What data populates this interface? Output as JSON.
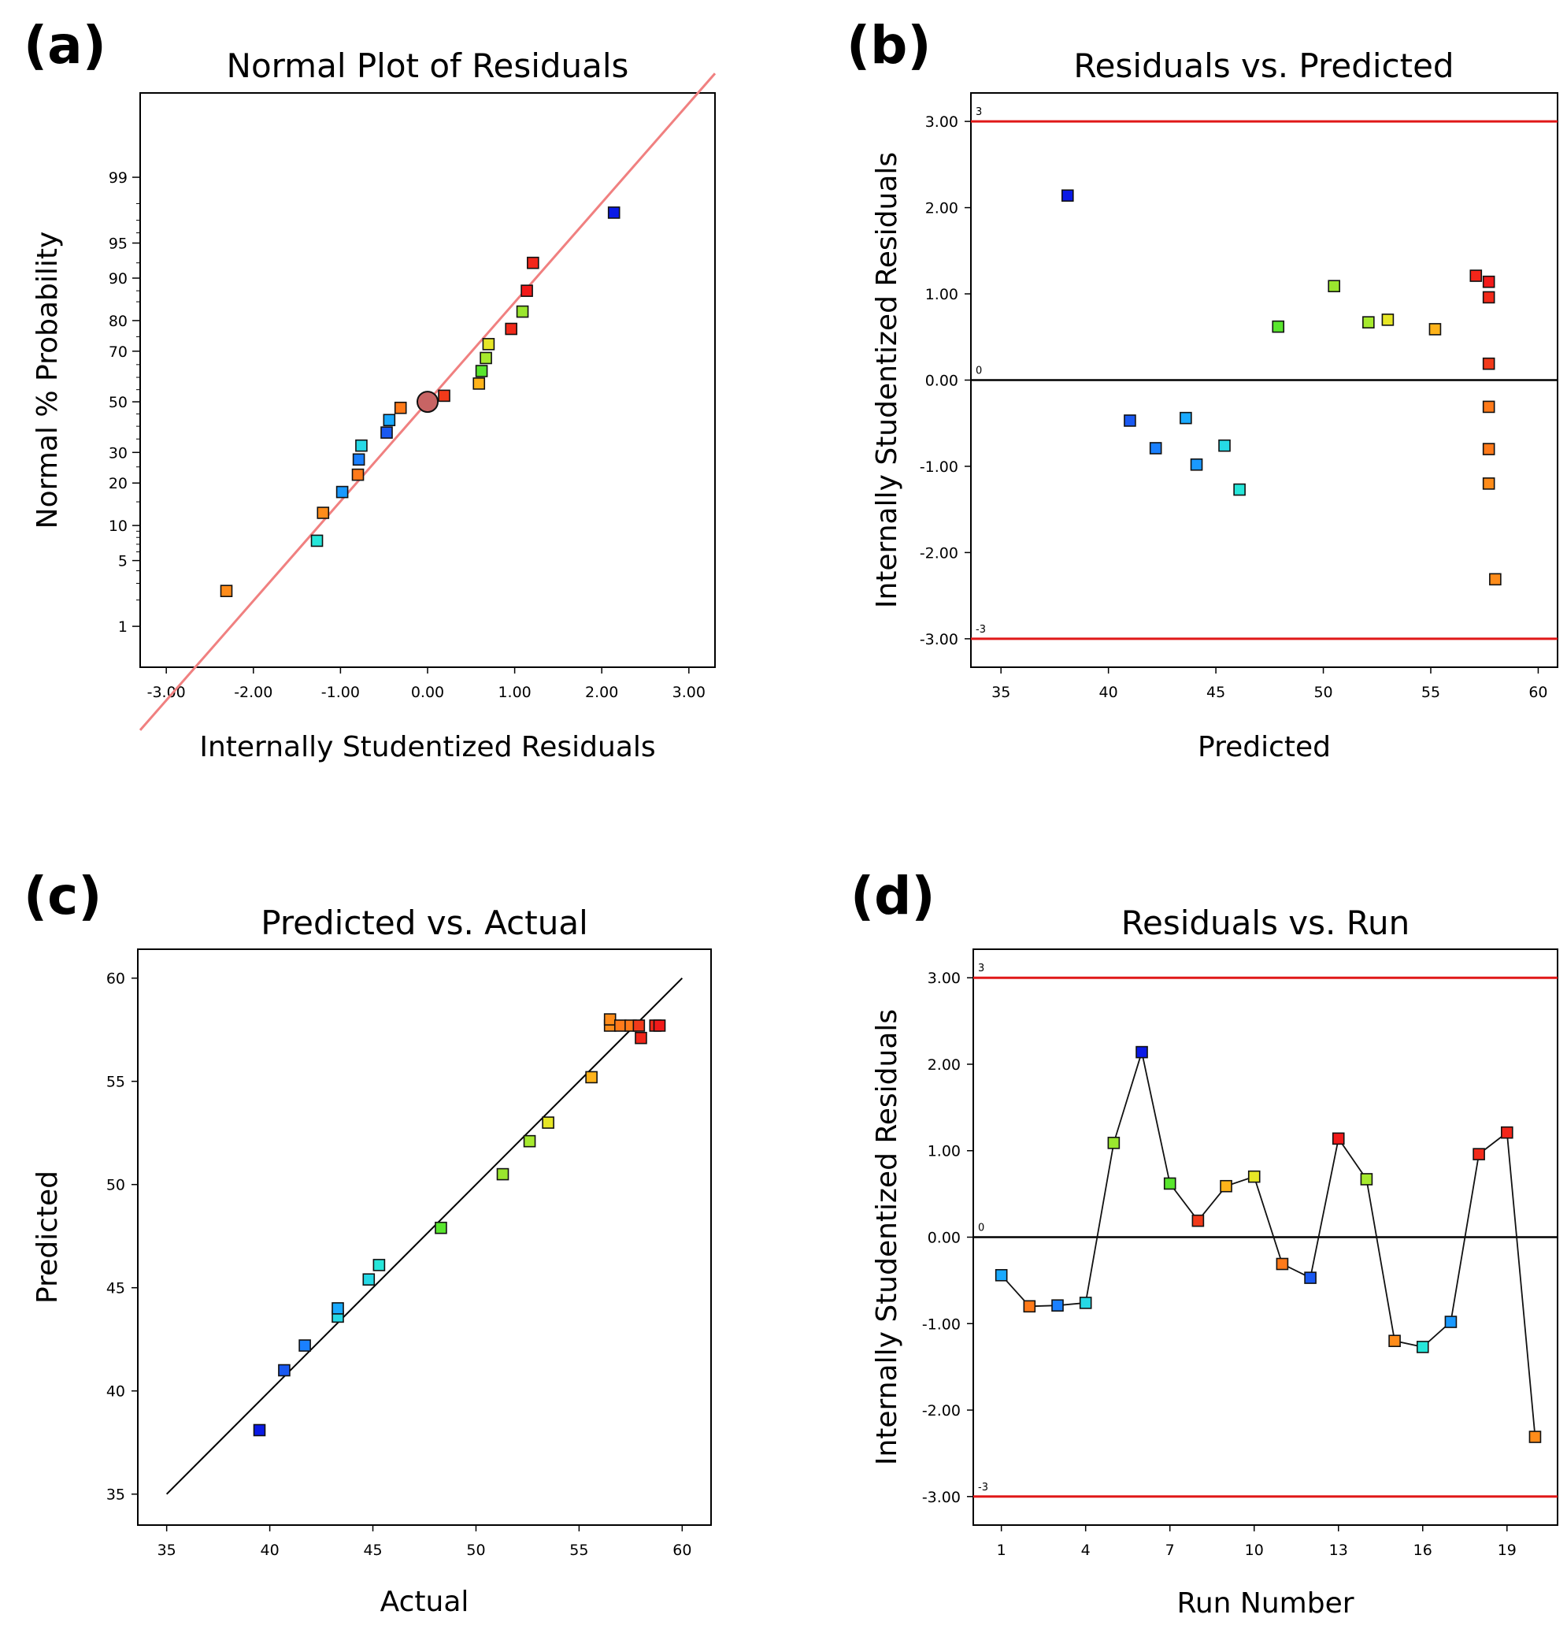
{
  "figure": {
    "panels": [
      {
        "tag": "(a)",
        "title": "Normal Plot of Residuals",
        "xlabel": "Internally Studentized Residuals",
        "ylabel": "Normal % Probability"
      },
      {
        "tag": "(b)",
        "title": "Residuals vs. Predicted",
        "xlabel": "Predicted",
        "ylabel": "Internally Studentized Residuals"
      },
      {
        "tag": "(c)",
        "title": "Predicted vs. Actual",
        "xlabel": "Actual",
        "ylabel": "Predicted"
      },
      {
        "tag": "(d)",
        "title": "Residuals vs. Run",
        "xlabel": "Run Number",
        "ylabel": "Internally Studentized Residuals"
      }
    ]
  },
  "chart_data": [
    {
      "type": "scatter",
      "title": "Normal Plot of Residuals",
      "xlabel": "Internally Studentized Residuals",
      "ylabel": "Normal % Probability",
      "xlim": [
        -3.3,
        3.3
      ],
      "x_ticks": [
        "-3.00",
        "-2.00",
        "-1.00",
        "0.00",
        "1.00",
        "2.00",
        "3.00"
      ],
      "y_ticks": [
        "1",
        "5",
        "10",
        "20",
        "30",
        "50",
        "70",
        "80",
        "90",
        "95",
        "99"
      ],
      "reference_line": "normal fit",
      "line_color": "#f08080",
      "points": [
        {
          "x": -2.31,
          "p": 2.5,
          "color": "#ff8c1a"
        },
        {
          "x": -1.27,
          "p": 7.5,
          "color": "#26e6d9"
        },
        {
          "x": -1.2,
          "p": 12.5,
          "color": "#ff8c1a"
        },
        {
          "x": -0.98,
          "p": 17.5,
          "color": "#1a99ff"
        },
        {
          "x": -0.8,
          "p": 22.5,
          "color": "#ff7a1a"
        },
        {
          "x": -0.79,
          "p": 27.5,
          "color": "#1a80ff"
        },
        {
          "x": -0.76,
          "p": 32.5,
          "color": "#26d9e6"
        },
        {
          "x": -0.47,
          "p": 37.5,
          "color": "#1a59f2"
        },
        {
          "x": -0.44,
          "p": 42.5,
          "color": "#1aaaff"
        },
        {
          "x": -0.31,
          "p": 47.5,
          "color": "#ff7a1a"
        },
        {
          "x": 0.19,
          "p": 52.5,
          "color": "#f23a1a"
        },
        {
          "x": 0.59,
          "p": 57.5,
          "color": "#ffb31a"
        },
        {
          "x": 0.62,
          "p": 62.5,
          "color": "#59e62e"
        },
        {
          "x": 0.67,
          "p": 67.5,
          "color": "#a6ea2e"
        },
        {
          "x": 0.7,
          "p": 72.5,
          "color": "#e6e626"
        },
        {
          "x": 0.96,
          "p": 77.5,
          "color": "#f22a1a"
        },
        {
          "x": 1.09,
          "p": 82.5,
          "color": "#9ae62e"
        },
        {
          "x": 1.14,
          "p": 87.5,
          "color": "#f21a1a"
        },
        {
          "x": 1.21,
          "p": 92.5,
          "color": "#f2261a"
        },
        {
          "x": 2.14,
          "p": 97.5,
          "color": "#0a1ae6"
        }
      ],
      "highlight_point": {
        "x": 0.0,
        "p": 50,
        "color": "#c86464"
      }
    },
    {
      "type": "scatter",
      "title": "Residuals vs. Predicted",
      "xlabel": "Predicted",
      "ylabel": "Internally Studentized Residuals",
      "xlim": [
        33.6,
        60.9
      ],
      "ylim": [
        -3.33,
        3.33
      ],
      "x_ticks": [
        "35",
        "40",
        "45",
        "50",
        "55",
        "60"
      ],
      "y_ticks": [
        "-3.00",
        "-2.00",
        "-1.00",
        "0.00",
        "1.00",
        "2.00",
        "3.00"
      ],
      "limit_lines": [
        {
          "y": 3,
          "label": "3",
          "color": "#e01818"
        },
        {
          "y": -3,
          "label": "-3",
          "color": "#e01818"
        }
      ],
      "zero_line": {
        "y": 0,
        "label": "0"
      },
      "points": [
        {
          "x": 38.1,
          "y": 2.14,
          "color": "#0a1ae6"
        },
        {
          "x": 41.0,
          "y": -0.47,
          "color": "#1a59f2"
        },
        {
          "x": 42.2,
          "y": -0.79,
          "color": "#1a80ff"
        },
        {
          "x": 43.6,
          "y": -0.44,
          "color": "#1aaaff"
        },
        {
          "x": 44.1,
          "y": -0.98,
          "color": "#1a99ff"
        },
        {
          "x": 45.4,
          "y": -0.76,
          "color": "#26d9e6"
        },
        {
          "x": 46.1,
          "y": -1.27,
          "color": "#26e6d9"
        },
        {
          "x": 47.9,
          "y": 0.62,
          "color": "#59e62e"
        },
        {
          "x": 50.5,
          "y": 1.09,
          "color": "#9ae62e"
        },
        {
          "x": 52.1,
          "y": 0.67,
          "color": "#a6ea2e"
        },
        {
          "x": 53.0,
          "y": 0.7,
          "color": "#e6e626"
        },
        {
          "x": 55.2,
          "y": 0.59,
          "color": "#ffb31a"
        },
        {
          "x": 57.1,
          "y": 1.21,
          "color": "#f2261a"
        },
        {
          "x": 57.7,
          "y": 1.14,
          "color": "#f21a1a"
        },
        {
          "x": 57.7,
          "y": 0.96,
          "color": "#f22a1a"
        },
        {
          "x": 57.7,
          "y": 0.19,
          "color": "#f23a1a"
        },
        {
          "x": 57.7,
          "y": -0.31,
          "color": "#ff7a1a"
        },
        {
          "x": 57.7,
          "y": -0.8,
          "color": "#ff7a1a"
        },
        {
          "x": 57.7,
          "y": -1.2,
          "color": "#ff8c1a"
        },
        {
          "x": 58.0,
          "y": -2.31,
          "color": "#ff8c1a"
        }
      ]
    },
    {
      "type": "scatter",
      "title": "Predicted vs. Actual",
      "xlabel": "Actual",
      "ylabel": "Predicted",
      "xlim": [
        33.6,
        61.4
      ],
      "ylim": [
        33.5,
        61.4
      ],
      "x_ticks": [
        "35",
        "40",
        "45",
        "50",
        "55",
        "60"
      ],
      "y_ticks": [
        "35",
        "40",
        "45",
        "50",
        "55",
        "60"
      ],
      "reference_line": {
        "from": [
          35,
          35
        ],
        "to": [
          60,
          60
        ]
      },
      "points": [
        {
          "x": 39.5,
          "y": 38.1,
          "color": "#0a1ae6"
        },
        {
          "x": 40.7,
          "y": 41.0,
          "color": "#1a59f2"
        },
        {
          "x": 41.7,
          "y": 42.2,
          "color": "#1a80ff"
        },
        {
          "x": 43.3,
          "y": 43.6,
          "color": "#26d9e6"
        },
        {
          "x": 43.3,
          "y": 44.0,
          "color": "#1aaaff"
        },
        {
          "x": 44.8,
          "y": 45.4,
          "color": "#26d9e6"
        },
        {
          "x": 45.3,
          "y": 46.1,
          "color": "#26e6d9"
        },
        {
          "x": 48.3,
          "y": 47.9,
          "color": "#59e62e"
        },
        {
          "x": 51.3,
          "y": 50.5,
          "color": "#9ae62e"
        },
        {
          "x": 52.6,
          "y": 52.1,
          "color": "#a6ea2e"
        },
        {
          "x": 53.5,
          "y": 53.0,
          "color": "#e6e626"
        },
        {
          "x": 55.6,
          "y": 55.2,
          "color": "#ffb31a"
        },
        {
          "x": 56.5,
          "y": 57.7,
          "color": "#ff8c1a"
        },
        {
          "x": 56.5,
          "y": 58.0,
          "color": "#ff8c1a"
        },
        {
          "x": 57.0,
          "y": 57.7,
          "color": "#ff7a1a"
        },
        {
          "x": 57.5,
          "y": 57.7,
          "color": "#ff7a1a"
        },
        {
          "x": 57.9,
          "y": 57.7,
          "color": "#f23a1a"
        },
        {
          "x": 58.0,
          "y": 57.1,
          "color": "#f2261a"
        },
        {
          "x": 58.7,
          "y": 57.7,
          "color": "#f22a1a"
        },
        {
          "x": 58.9,
          "y": 57.7,
          "color": "#f21a1a"
        }
      ]
    },
    {
      "type": "line",
      "title": "Residuals vs. Run",
      "xlabel": "Run Number",
      "ylabel": "Internally Studentized Residuals",
      "xlim": [
        0,
        20.8
      ],
      "ylim": [
        -3.33,
        3.33
      ],
      "x_ticks": [
        "1",
        "4",
        "7",
        "10",
        "13",
        "16",
        "19"
      ],
      "y_ticks": [
        "-3.00",
        "-2.00",
        "-1.00",
        "0.00",
        "1.00",
        "2.00",
        "3.00"
      ],
      "limit_lines": [
        {
          "y": 3,
          "label": "3",
          "color": "#e01818"
        },
        {
          "y": -3,
          "label": "-3",
          "color": "#e01818"
        }
      ],
      "zero_line": {
        "y": 0,
        "label": "0"
      },
      "points": [
        {
          "x": 1,
          "y": -0.44,
          "color": "#1aaaff"
        },
        {
          "x": 2,
          "y": -0.8,
          "color": "#ff7a1a"
        },
        {
          "x": 3,
          "y": -0.79,
          "color": "#1a80ff"
        },
        {
          "x": 4,
          "y": -0.76,
          "color": "#26d9e6"
        },
        {
          "x": 5,
          "y": 1.09,
          "color": "#9ae62e"
        },
        {
          "x": 6,
          "y": 2.14,
          "color": "#0a1ae6"
        },
        {
          "x": 7,
          "y": 0.62,
          "color": "#59e62e"
        },
        {
          "x": 8,
          "y": 0.19,
          "color": "#f23a1a"
        },
        {
          "x": 9,
          "y": 0.59,
          "color": "#ffb31a"
        },
        {
          "x": 10,
          "y": 0.7,
          "color": "#e6e626"
        },
        {
          "x": 11,
          "y": -0.31,
          "color": "#ff7a1a"
        },
        {
          "x": 12,
          "y": -0.47,
          "color": "#1a59f2"
        },
        {
          "x": 13,
          "y": 1.14,
          "color": "#f21a1a"
        },
        {
          "x": 14,
          "y": 0.67,
          "color": "#a6ea2e"
        },
        {
          "x": 15,
          "y": -1.2,
          "color": "#ff8c1a"
        },
        {
          "x": 16,
          "y": -1.27,
          "color": "#26e6d9"
        },
        {
          "x": 17,
          "y": -0.98,
          "color": "#1a99ff"
        },
        {
          "x": 18,
          "y": 0.96,
          "color": "#f22a1a"
        },
        {
          "x": 19,
          "y": 1.21,
          "color": "#f2261a"
        },
        {
          "x": 20,
          "y": -2.31,
          "color": "#ff8c1a"
        }
      ]
    }
  ]
}
